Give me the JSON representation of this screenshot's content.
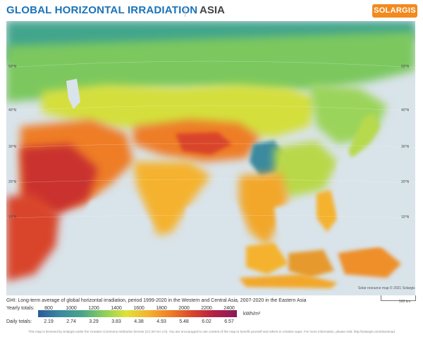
{
  "header": {
    "title": "GLOBAL HORIZONTAL IRRADIATION",
    "region": "ASIA",
    "logo_text": "SOLARGIS"
  },
  "map": {
    "credit": "Solar resource map © 2021 Solargis",
    "scale_label": "500 km",
    "lat_labels": {
      "left": [
        "50°N",
        "40°N",
        "30°N",
        "20°N",
        "10°N"
      ],
      "right": [
        "50°N",
        "40°N",
        "30°N",
        "20°N",
        "10°N"
      ]
    }
  },
  "legend": {
    "description": "GHI: Long-term average of global horizontal irradiation, period 1999-2020 in the Western and Central Asia, 2007-2020 in the Eastern Asia",
    "yearly_label": "Yearly totals:",
    "yearly_values": [
      "800",
      "1000",
      "1200",
      "1400",
      "1600",
      "1800",
      "2000",
      "2200",
      "2400"
    ],
    "daily_label": "Daily totals:",
    "daily_values": [
      "2.19",
      "2.74",
      "3.29",
      "3.83",
      "4.38",
      "4.93",
      "5.48",
      "6.02",
      "6.57"
    ],
    "unit": "kWh/m²",
    "colors": [
      "#2a5a9c",
      "#3a8a9f",
      "#4aa58a",
      "#8ecf5a",
      "#dfe23a",
      "#f4b22f",
      "#ee7d26",
      "#d9442b",
      "#b21f45",
      "#8a1a5a"
    ]
  },
  "footer": {
    "license": "This map is licensed by Solargis under the Creative Commons Attribution license (CC BY-SA 4.0). You are encouraged to use content of the map to benefit yourself and others in creative ways. For more information, please visit: http://solargis.com/download"
  },
  "colors": {
    "title": "#1a73b8",
    "logo_bg": "#f28a1e",
    "ocean": "#d9e3ea"
  }
}
